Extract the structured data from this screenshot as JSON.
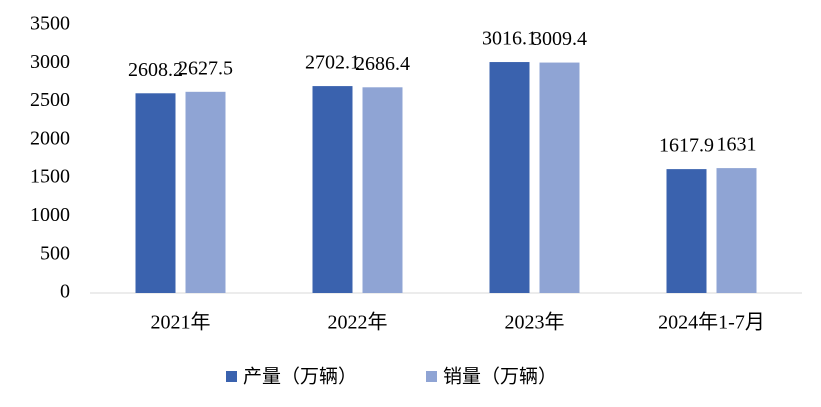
{
  "chart_data": {
    "type": "bar",
    "categories": [
      "2021年",
      "2022年",
      "2023年",
      "2024年1-7月"
    ],
    "series": [
      {
        "name": "产量（万辆）",
        "color": "#3a62ae",
        "values": [
          2608.2,
          2702.1,
          3016.1,
          1617.9
        ]
      },
      {
        "name": "销量（万辆）",
        "color": "#8fa4d4",
        "values": [
          2627.5,
          2686.4,
          3009.4,
          1631
        ]
      }
    ],
    "ylim": [
      0,
      3500
    ],
    "yticks": [
      0,
      500,
      1000,
      1500,
      2000,
      2500,
      3000,
      3500
    ],
    "grid": false
  }
}
